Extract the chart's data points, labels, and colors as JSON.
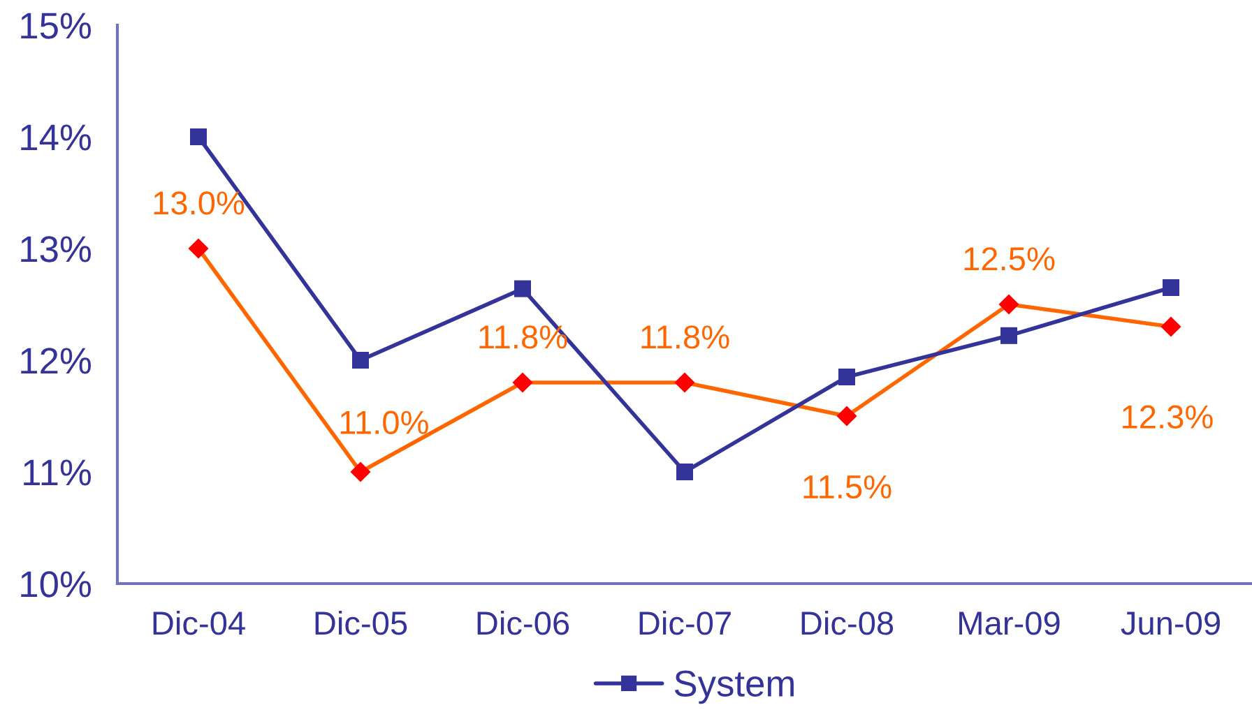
{
  "chart_data": {
    "type": "line",
    "categories": [
      "Dic-04",
      "Dic-05",
      "Dic-06",
      "Dic-07",
      "Dic-08",
      "Mar-09",
      "Jun-09"
    ],
    "ylim": [
      10,
      15
    ],
    "yticks": [
      {
        "value": 10,
        "label": "10%"
      },
      {
        "value": 11,
        "label": "11%"
      },
      {
        "value": 12,
        "label": "12%"
      },
      {
        "value": 13,
        "label": "13%"
      },
      {
        "value": 14,
        "label": "14%"
      },
      {
        "value": 15,
        "label": "15%"
      }
    ],
    "grid": false,
    "legend": "bottom",
    "series": [
      {
        "color": "#ff6600",
        "colors": [
          "#ff0000",
          "#ff0000",
          "#ff0000",
          "#ff0000",
          "#ff0000",
          "#ff0000",
          "#ff0000"
        ],
        "marker": "diamond",
        "values": [
          13.0,
          11.0,
          11.8,
          11.8,
          11.5,
          12.5,
          12.3
        ],
        "value_labels": [
          "13.0%",
          "11.0%",
          "11.8%",
          "11.8%",
          "11.5%",
          "12.5%",
          "12.3%"
        ]
      },
      {
        "name": "System",
        "color": "#333399",
        "marker": "square",
        "values": [
          14.0,
          12.0,
          12.64,
          11.0,
          11.85,
          12.22,
          12.65
        ]
      }
    ]
  }
}
